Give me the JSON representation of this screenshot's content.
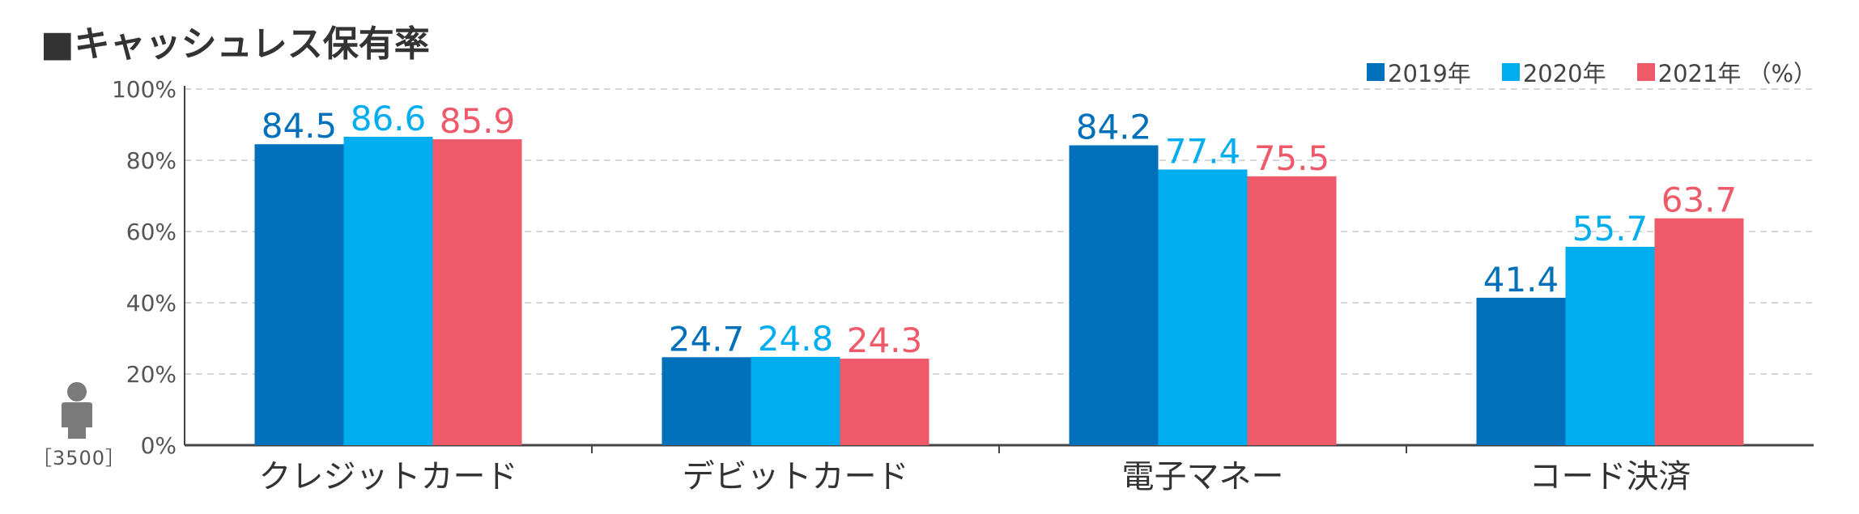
{
  "title": "■キャッシュレス保有率",
  "legend_unit": "（%）",
  "respondents": "［3500］",
  "chart_data": {
    "type": "bar",
    "categories": [
      "クレジットカード",
      "デビットカード",
      "電子マネー",
      "コード決済"
    ],
    "series": [
      {
        "name": "2019年",
        "color": "#0070bb",
        "values": [
          84.5,
          24.7,
          84.2,
          41.4
        ]
      },
      {
        "name": "2020年",
        "color": "#00adee",
        "values": [
          86.6,
          24.8,
          77.4,
          55.7
        ]
      },
      {
        "name": "2021年",
        "color": "#ef5a6a",
        "values": [
          85.9,
          24.3,
          75.5,
          63.7
        ]
      }
    ],
    "y_ticks": [
      "0%",
      "20%",
      "40%",
      "60%",
      "80%",
      "100%"
    ],
    "ylim": [
      0,
      100
    ],
    "grid": true,
    "legend_position": "top-right"
  }
}
